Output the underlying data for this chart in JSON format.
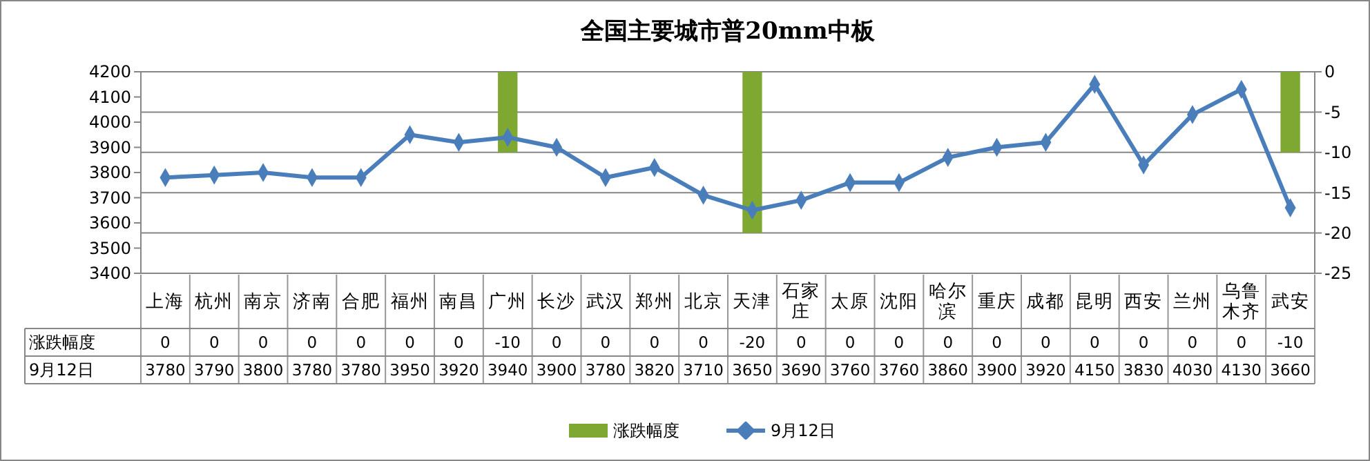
{
  "chart_data": {
    "type": "line",
    "title": "全国主要城市普20mm中板",
    "categories": [
      "上海",
      "杭州",
      "南京",
      "济南",
      "合肥",
      "福州",
      "南昌",
      "广州",
      "长沙",
      "武汉",
      "郑州",
      "北京",
      "天津",
      "石家庄",
      "太原",
      "沈阳",
      "哈尔滨",
      "重庆",
      "成都",
      "昆明",
      "西安",
      "兰州",
      "乌鲁木齐",
      "武安"
    ],
    "series": [
      {
        "name": "涨跌幅度",
        "type": "bar",
        "axis": "y2",
        "color": "#7fa832",
        "values": [
          0,
          0,
          0,
          0,
          0,
          0,
          0,
          -10,
          0,
          0,
          0,
          0,
          -20,
          0,
          0,
          0,
          0,
          0,
          0,
          0,
          0,
          0,
          0,
          -10
        ]
      },
      {
        "name": "9月12日",
        "color": "#4a7ebb",
        "marker": "diamond",
        "values": [
          3780,
          3790,
          3800,
          3780,
          3780,
          3950,
          3920,
          3940,
          3900,
          3780,
          3820,
          3710,
          3650,
          3690,
          3760,
          3760,
          3860,
          3900,
          3920,
          4150,
          3830,
          4030,
          4130,
          3660
        ]
      }
    ],
    "ylim": [
      3400,
      4200
    ],
    "yticks": [
      3400,
      3500,
      3600,
      3700,
      3800,
      3900,
      4000,
      4100,
      4200
    ],
    "y2lim": [
      -25,
      0
    ],
    "y2ticks": [
      -25,
      -20,
      -15,
      -10,
      -5,
      0
    ],
    "grid": true,
    "legend": "bottom",
    "data_labels": true
  }
}
